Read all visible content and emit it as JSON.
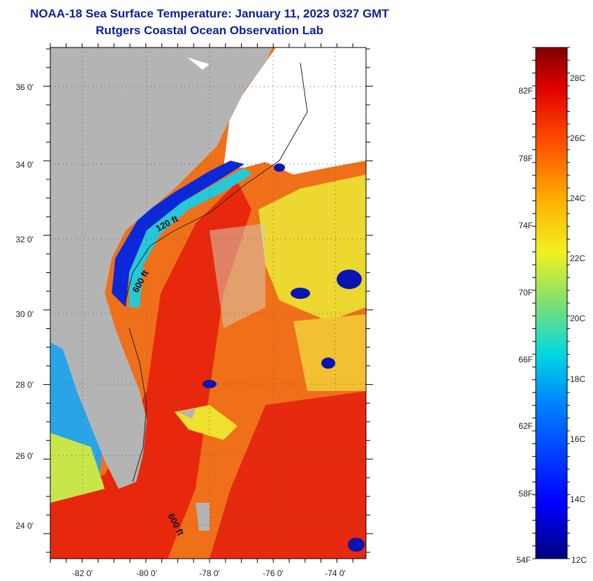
{
  "title": {
    "line1": "NOAA-18 Sea Surface Temperature:  January 11, 2023 0327 GMT",
    "line2": "Rutgers Coastal Ocean Observation Lab"
  },
  "map": {
    "lat_labels": [
      "36 0'",
      "34 0'",
      "32 0'",
      "30 0'",
      "28 0'",
      "26 0'",
      "24 0'"
    ],
    "lon_labels": [
      "-82 0'",
      "-80 0'",
      "-78 0'",
      "-76 0'",
      "-74 0'"
    ],
    "contour_labels": [
      "120 ft",
      "600 ft",
      "600 ft"
    ],
    "colors": {
      "land": "#b4b4b4",
      "cloud": "#ffffff",
      "warm": "#f03a10",
      "hot": "#e8200c",
      "orange": "#f58a1a",
      "yellow": "#f0e21e",
      "cold": "#0a14c8"
    }
  },
  "colorbar": {
    "fahrenheit_labels": [
      "82F",
      "78F",
      "74F",
      "70F",
      "66F",
      "62F",
      "58F",
      "54F"
    ],
    "celsius_labels": [
      "28C",
      "26C",
      "24C",
      "22C",
      "20C",
      "18C",
      "16C",
      "14C",
      "12C"
    ]
  }
}
